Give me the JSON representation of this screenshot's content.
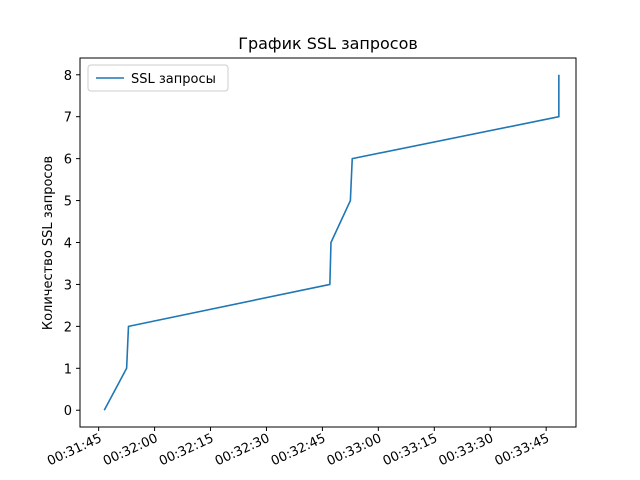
{
  "chart_data": {
    "type": "line",
    "title": "График SSL запросов",
    "xlabel": "",
    "ylabel": "Количество SSL запросов",
    "x_ticks": [
      "00:31:45",
      "00:32:00",
      "00:32:15",
      "00:32:30",
      "00:32:45",
      "00:33:00",
      "00:33:15",
      "00:33:30",
      "00:33:45"
    ],
    "x_tick_seconds": [
      105,
      120,
      135,
      150,
      165,
      180,
      195,
      210,
      225
    ],
    "xlim_seconds": [
      100,
      233
    ],
    "y_ticks": [
      0,
      1,
      2,
      3,
      4,
      5,
      6,
      7,
      8
    ],
    "ylim": [
      -0.4,
      8.4
    ],
    "legend_position": "upper-left",
    "grid": false,
    "series": [
      {
        "name": "SSL запросы",
        "color": "#1f77b4",
        "x_seconds": [
          106.5,
          112.5,
          113,
          167,
          167.3,
          172.5,
          173,
          228.4,
          228.4
        ],
        "values": [
          0,
          1,
          2,
          3,
          4,
          5,
          6,
          7,
          8
        ]
      }
    ]
  }
}
